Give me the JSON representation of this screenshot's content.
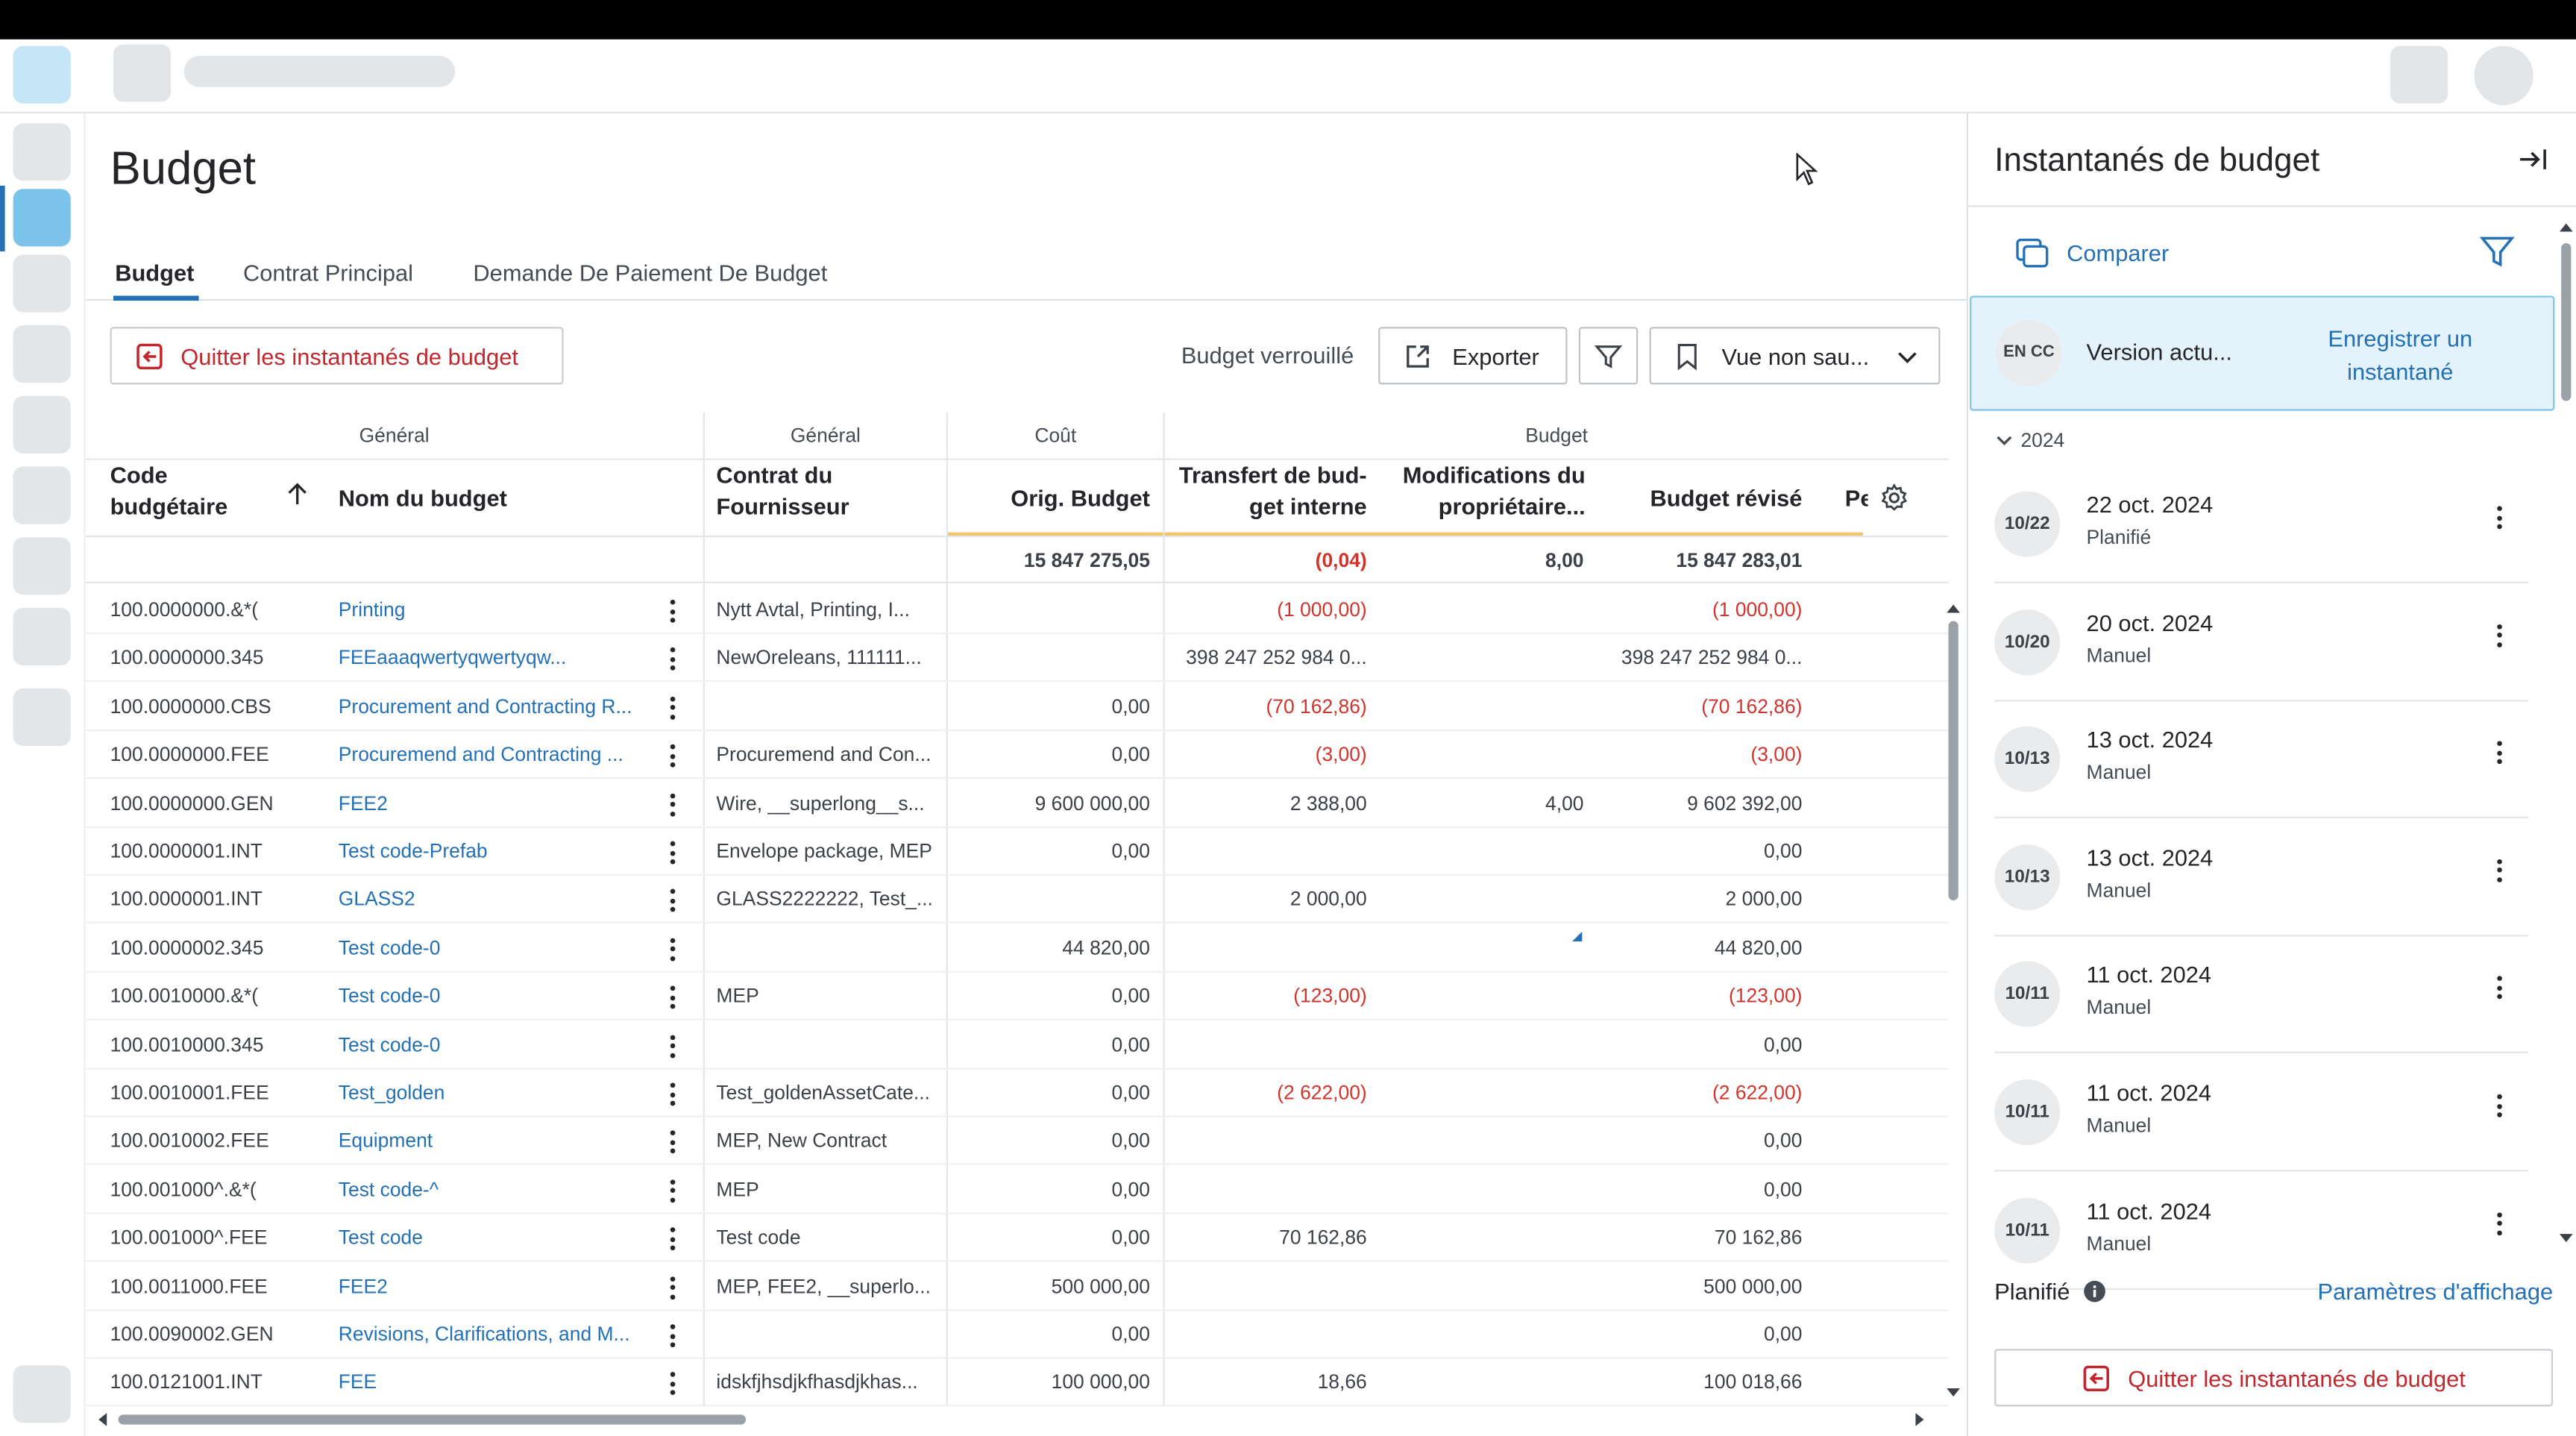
{
  "page": {
    "title": "Budget",
    "tabs": [
      "Budget",
      "Contrat Principal",
      "Demande De Paiement De Budget"
    ]
  },
  "toolbar": {
    "exit_snapshots": "Quitter les instantanés de budget",
    "locked": "Budget verrouillé",
    "export": "Exporter",
    "view": "Vue non sau..."
  },
  "table": {
    "groups": {
      "general1": "Général",
      "general2": "Général",
      "cost": "Coût",
      "budget": "Budget"
    },
    "columns": {
      "code": "Code budgétaire",
      "name": "Nom du budget",
      "contract": "Contrat du Fournisseur",
      "orig": "Orig. Budget",
      "transfer": "Transfert de bud-get interne",
      "owner": "Modifications du propriétaire...",
      "revised": "Budget révisé",
      "cut": "Pe"
    },
    "totals": {
      "orig": "15 847 275,05",
      "transfer": "(0,04)",
      "owner": "8,00",
      "revised": "15 847 283,01"
    },
    "rows": [
      {
        "code": "100.0000000.&*(",
        "name": "Printing",
        "contract": "Nytt Avtal, Printing, I...",
        "orig": "",
        "transfer": "(1 000,00)",
        "owner": "",
        "revised": "(1 000,00)"
      },
      {
        "code": "100.0000000.345",
        "name": "FEEaaaqwertyqwertyqw...",
        "contract": "NewOreleans, 111111...",
        "orig": "",
        "transfer": "398 247 252 984 0...",
        "owner": "",
        "revised": "398 247 252 984 0..."
      },
      {
        "code": "100.0000000.CBS",
        "name": "Procurement and Contracting R...",
        "contract": "",
        "orig": "0,00",
        "transfer": "(70 162,86)",
        "owner": "",
        "revised": "(70 162,86)"
      },
      {
        "code": "100.0000000.FEE",
        "name": "Procuremend and Contracting ...",
        "contract": "Procuremend and Con...",
        "orig": "0,00",
        "transfer": "(3,00)",
        "owner": "",
        "revised": "(3,00)"
      },
      {
        "code": "100.0000000.GEN",
        "name": "FEE2",
        "contract": "Wire, __superlong__s...",
        "orig": "9 600 000,00",
        "transfer": "2 388,00",
        "owner": "4,00",
        "revised": "9 602 392,00"
      },
      {
        "code": "100.0000001.INT",
        "name": "Test code-Prefab",
        "contract": "Envelope package, MEP",
        "orig": "0,00",
        "transfer": "",
        "owner": "",
        "revised": "0,00"
      },
      {
        "code": "100.0000001.INT",
        "name": "GLASS2",
        "contract": "GLASS2222222, Test_...",
        "orig": "",
        "transfer": "2 000,00",
        "owner": "",
        "revised": "2 000,00"
      },
      {
        "code": "100.0000002.345",
        "name": "Test code-0",
        "contract": "",
        "orig": "44 820,00",
        "transfer": "",
        "owner": "",
        "revised": "44 820,00"
      },
      {
        "code": "100.0010000.&*(",
        "name": "Test code-0",
        "contract": "MEP",
        "orig": "0,00",
        "transfer": "(123,00)",
        "owner": "",
        "revised": "(123,00)"
      },
      {
        "code": "100.0010000.345",
        "name": "Test code-0",
        "contract": "",
        "orig": "0,00",
        "transfer": "",
        "owner": "",
        "revised": "0,00"
      },
      {
        "code": "100.0010001.FEE",
        "name": "Test_golden",
        "contract": "Test_goldenAssetCate...",
        "orig": "0,00",
        "transfer": "(2 622,00)",
        "owner": "",
        "revised": "(2 622,00)"
      },
      {
        "code": "100.0010002.FEE",
        "name": "Equipment",
        "contract": "MEP, New Contract",
        "orig": "0,00",
        "transfer": "",
        "owner": "",
        "revised": "0,00"
      },
      {
        "code": "100.001000^.&*(",
        "name": "Test code-^",
        "contract": "MEP",
        "orig": "0,00",
        "transfer": "",
        "owner": "",
        "revised": "0,00"
      },
      {
        "code": "100.001000^.FEE",
        "name": "Test code",
        "contract": "Test code",
        "orig": "0,00",
        "transfer": "70 162,86",
        "owner": "",
        "revised": "70 162,86"
      },
      {
        "code": "100.0011000.FEE",
        "name": "FEE2",
        "contract": "MEP, FEE2, __superlo...",
        "orig": "500 000,00",
        "transfer": "",
        "owner": "",
        "revised": "500 000,00"
      },
      {
        "code": "100.0090002.GEN",
        "name": "Revisions, Clarifications, and M...",
        "contract": "",
        "orig": "0,00",
        "transfer": "",
        "owner": "",
        "revised": "0,00"
      },
      {
        "code": "100.0121001.INT",
        "name": "FEE",
        "contract": "idskfjhsdjkfhasdjkhas...",
        "orig": "100 000,00",
        "transfer": "18,66",
        "owner": "",
        "revised": "100 018,66"
      }
    ]
  },
  "panel": {
    "title": "Instantanés de budget",
    "compare": "Comparer",
    "current": {
      "badge": "EN CC",
      "label": "Version actu...",
      "save": "Enregistrer un instantané"
    },
    "year": "2024",
    "snapshots": [
      {
        "badge": "10/22",
        "date": "22 oct. 2024",
        "type": "Planifié"
      },
      {
        "badge": "10/20",
        "date": "20 oct. 2024",
        "type": "Manuel"
      },
      {
        "badge": "10/13",
        "date": "13 oct. 2024",
        "type": "Manuel"
      },
      {
        "badge": "10/13",
        "date": "13 oct. 2024",
        "type": "Manuel"
      },
      {
        "badge": "10/11",
        "date": "11 oct. 2024",
        "type": "Manuel"
      },
      {
        "badge": "10/11",
        "date": "11 oct. 2024",
        "type": "Manuel"
      },
      {
        "badge": "10/11",
        "date": "11 oct. 2024",
        "type": "Manuel"
      }
    ],
    "footer": {
      "scheduled": "Planifié",
      "display_settings": "Paramètres d'affichage",
      "exit": "Quitter les instantanés de budget"
    }
  },
  "colors": {
    "accent": "#2470b7",
    "negative": "#d0342c",
    "danger": "#c1272d",
    "current_bg": "#e4f2fb",
    "active_nav": "#7cc3ec"
  }
}
